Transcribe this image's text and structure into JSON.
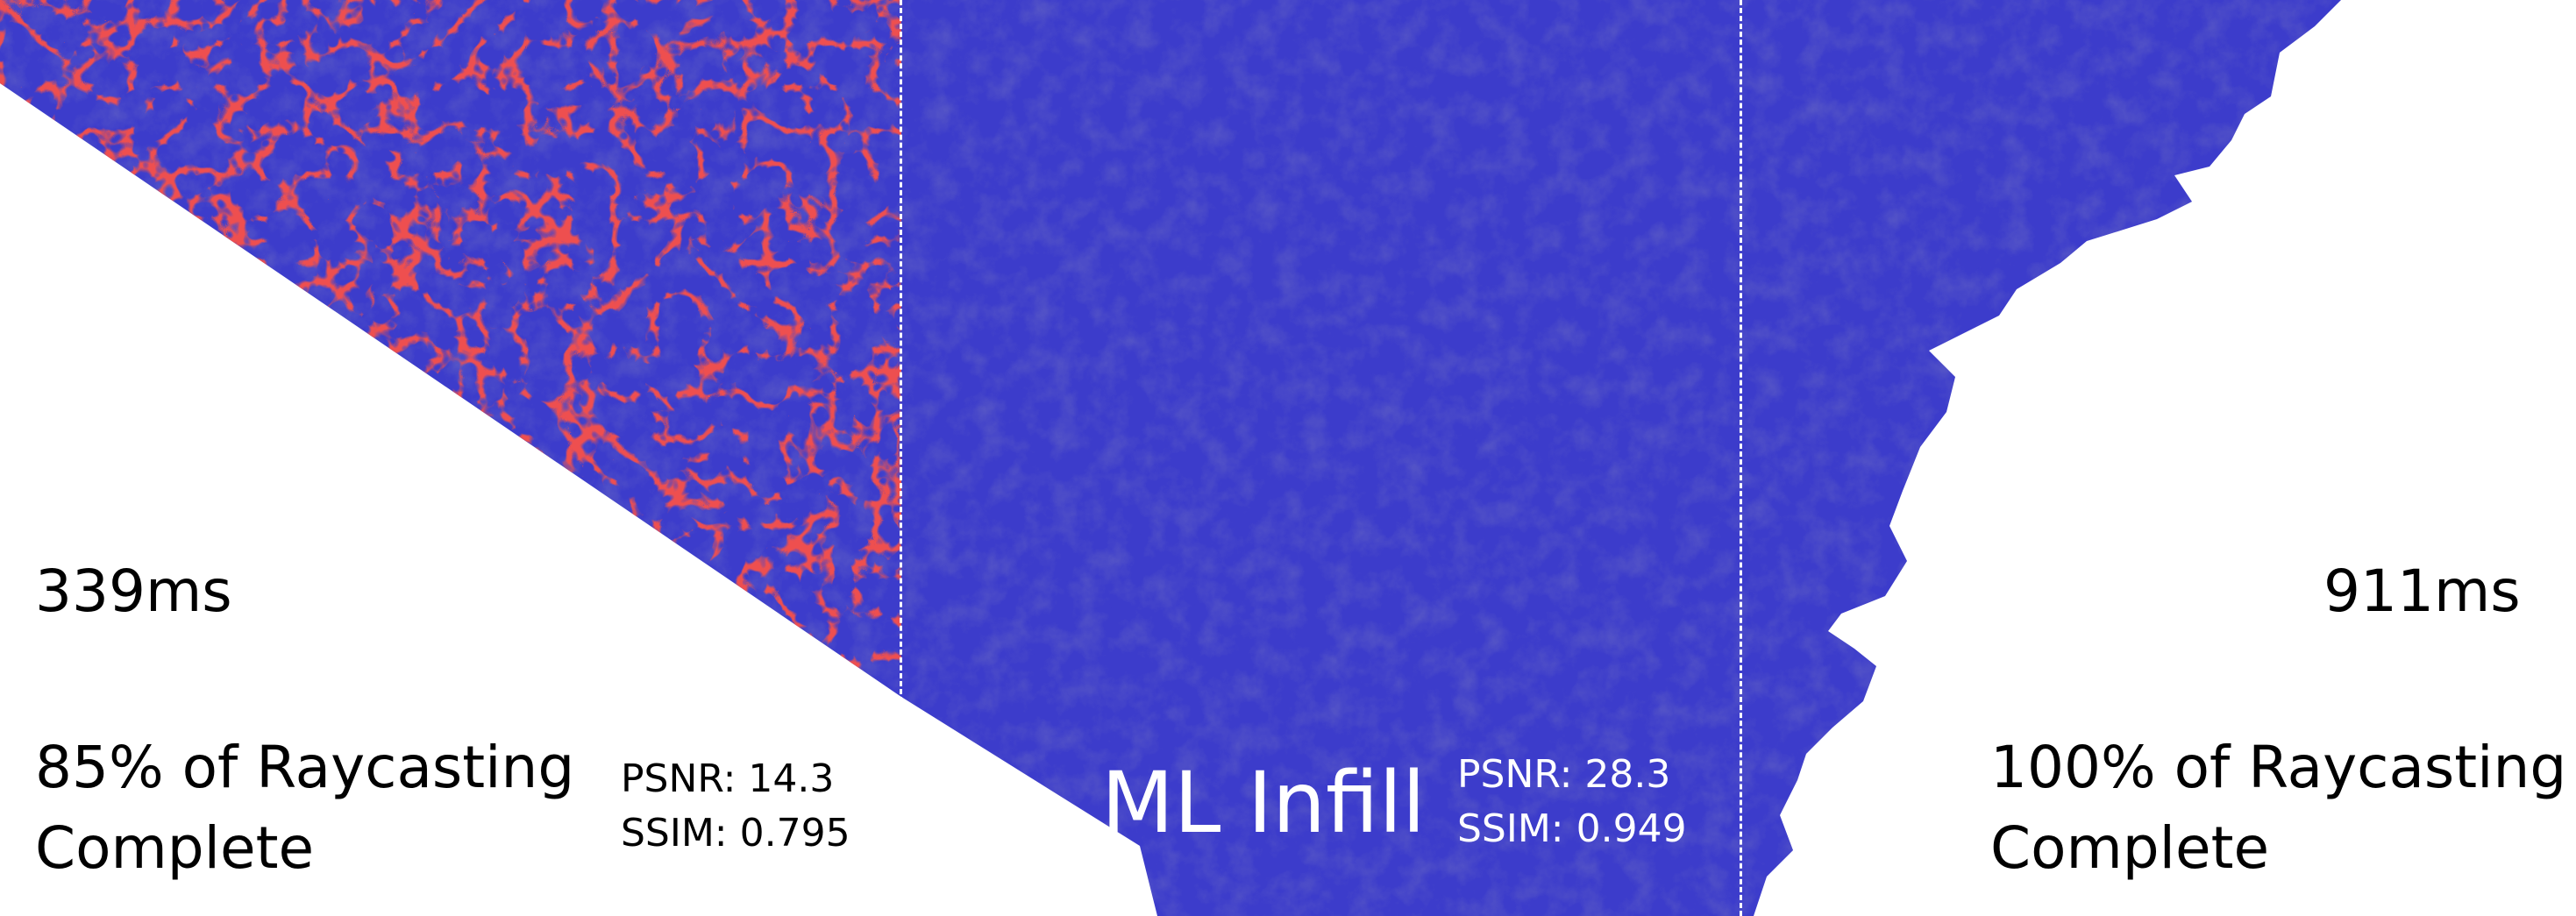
{
  "colors": {
    "surface": "#3c3ccb",
    "surface_dark": "#262692",
    "surface_light": "#5454e0",
    "infill_cracks": "#d81414",
    "background": "#ffffff",
    "divider": "#ffffff"
  },
  "left_panel": {
    "time": "339ms",
    "status_line1": "85% of Raycasting",
    "status_line2": "Complete",
    "psnr": "PSNR: 14.3",
    "ssim": "SSIM: 0.795"
  },
  "middle_panel": {
    "title": "ML Infill",
    "psnr": "PSNR: 28.3",
    "ssim": "SSIM: 0.949"
  },
  "right_panel": {
    "time": "911ms",
    "status_line1": "100% of Raycasting",
    "status_line2": "Complete"
  }
}
